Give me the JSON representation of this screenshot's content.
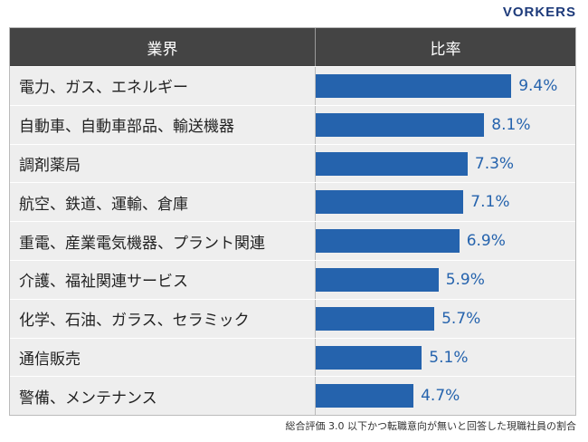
{
  "logo": "VORKERS",
  "chart_data": {
    "type": "bar",
    "orientation": "horizontal",
    "headers": [
      "業界",
      "比率"
    ],
    "categories": [
      "電力、ガス、エネルギー",
      "自動車、自動車部品、輸送機器",
      "調剤薬局",
      "航空、鉄道、運輸、倉庫",
      "重電、産業電気機器、プラント関連",
      "介護、福祉関連サービス",
      "化学、石油、ガラス、セラミック",
      "通信販売",
      "警備、メンテナンス"
    ],
    "values": [
      9.4,
      8.1,
      7.3,
      7.1,
      6.9,
      5.9,
      5.7,
      5.1,
      4.7
    ],
    "labels": [
      "9.4%",
      "8.1%",
      "7.3%",
      "7.1%",
      "6.9%",
      "5.9%",
      "5.7%",
      "5.1%",
      "4.7%"
    ],
    "unit": "%",
    "bar_color": "#2563ad",
    "note": "総合評価 3.0 以下かつ転職意向が無いと回答した現職社員の割合"
  }
}
